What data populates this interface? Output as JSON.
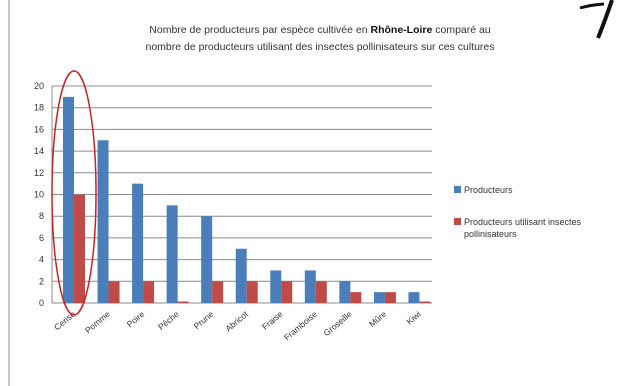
{
  "title_part1": "Nombre de producteurs par espèce cultivée en ",
  "title_bold": "Rhône-Loire",
  "title_part2": " comparé au",
  "title_line2": "nombre de producteurs utilisant des insectes pollinisateurs sur ces cultures",
  "colors": {
    "producteurs": "#4a7ebb",
    "pollinisateurs": "#be4b48",
    "highlight_ellipse": "#cc2222",
    "gridline": "#8c8c8c"
  },
  "chart_data": {
    "type": "bar",
    "categories": [
      "Cerise",
      "Pomme",
      "Poire",
      "Pêche",
      "Prune",
      "Abricot",
      "Fraise",
      "Framboise",
      "Groseille",
      "Mûre",
      "Kiwi"
    ],
    "series": [
      {
        "name": "Producteurs",
        "values": [
          19,
          15,
          11,
          9,
          8,
          5,
          3,
          3,
          2,
          1,
          1
        ]
      },
      {
        "name": "Producteurs utilisant insectes pollinisateurs",
        "values": [
          10,
          2,
          2,
          0,
          2,
          2,
          2,
          2,
          1,
          1,
          0
        ]
      }
    ],
    "ylim": [
      0,
      20
    ],
    "yticks": [
      0,
      2,
      4,
      6,
      8,
      10,
      12,
      14,
      16,
      18,
      20
    ],
    "grid": true,
    "legend_position": "right",
    "highlighted_category": "Cerise",
    "xlabel": "",
    "ylabel": ""
  }
}
